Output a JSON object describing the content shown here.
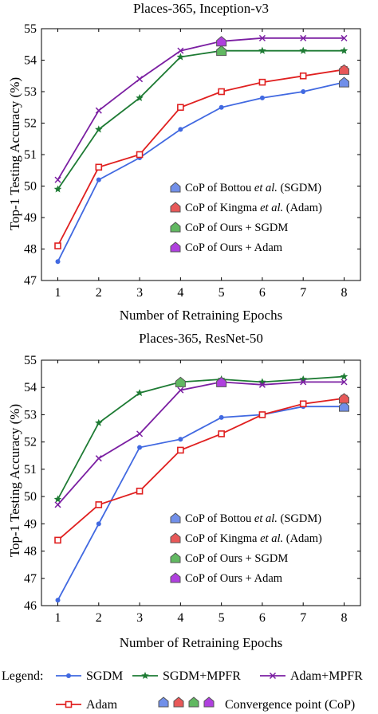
{
  "chart_data": [
    {
      "type": "line",
      "title": "Places-365, Inception-v3",
      "xlabel": "Number of Retraining Epochs",
      "ylabel": "Top-1 Testing Accuracy (%)",
      "x": [
        1,
        2,
        3,
        4,
        5,
        6,
        7,
        8
      ],
      "xlim": [
        0.6,
        8.4
      ],
      "ylim": [
        47,
        55
      ],
      "yticks": [
        47,
        48,
        49,
        50,
        51,
        52,
        53,
        54,
        55
      ],
      "grid": false,
      "legend_position": "lower-right",
      "series": [
        {
          "key": "sgdm",
          "values": [
            47.6,
            50.2,
            50.9,
            51.8,
            52.5,
            52.8,
            53.0,
            53.3
          ]
        },
        {
          "key": "sgdm_mpfr",
          "values": [
            49.9,
            51.8,
            52.8,
            54.1,
            54.3,
            54.3,
            54.3,
            54.3
          ]
        },
        {
          "key": "adam_mpfr",
          "values": [
            50.2,
            52.4,
            53.4,
            54.3,
            54.6,
            54.7,
            54.7,
            54.7
          ]
        },
        {
          "key": "adam",
          "values": [
            48.1,
            50.6,
            51.0,
            52.5,
            53.0,
            53.3,
            53.5,
            53.7
          ]
        }
      ],
      "convergence_points": [
        {
          "series": "sgdm",
          "x": 8,
          "y": 53.3,
          "color": "#4169e1"
        },
        {
          "series": "adam",
          "x": 8,
          "y": 53.7,
          "color": "#e02020"
        },
        {
          "series": "sgdm_mpfr",
          "x": 5,
          "y": 54.3,
          "color": "#2ca02c"
        },
        {
          "series": "adam_mpfr",
          "x": 5,
          "y": 54.6,
          "color": "#9400d3"
        }
      ],
      "inner_legend": [
        {
          "parts": [
            "CoP of Bottou ",
            "et al.",
            " (SGDM)"
          ],
          "color": "#4169e1"
        },
        {
          "parts": [
            "CoP of Kingma ",
            "et al.",
            " (Adam)"
          ],
          "color": "#e02020"
        },
        {
          "parts": [
            "CoP of Ours + SGDM",
            "",
            ""
          ],
          "color": "#2ca02c"
        },
        {
          "parts": [
            "CoP of Ours + Adam",
            "",
            ""
          ],
          "color": "#9400d3"
        }
      ]
    },
    {
      "type": "line",
      "title": "Places-365, ResNet-50",
      "xlabel": "Number of Retraining Epochs",
      "ylabel": "Top-1 Testing Accuracy (%)",
      "x": [
        1,
        2,
        3,
        4,
        5,
        6,
        7,
        8
      ],
      "xlim": [
        0.6,
        8.4
      ],
      "ylim": [
        46,
        55
      ],
      "yticks": [
        46,
        47,
        48,
        49,
        50,
        51,
        52,
        53,
        54,
        55
      ],
      "grid": false,
      "legend_position": "lower-right",
      "series": [
        {
          "key": "sgdm",
          "values": [
            46.2,
            49.0,
            51.8,
            52.1,
            52.9,
            53.0,
            53.3,
            53.3
          ]
        },
        {
          "key": "sgdm_mpfr",
          "values": [
            49.9,
            52.7,
            53.8,
            54.2,
            54.3,
            54.2,
            54.3,
            54.4
          ]
        },
        {
          "key": "adam_mpfr",
          "values": [
            49.7,
            51.4,
            52.3,
            53.9,
            54.2,
            54.1,
            54.2,
            54.2
          ]
        },
        {
          "key": "adam",
          "values": [
            48.4,
            49.7,
            50.2,
            51.7,
            52.3,
            53.0,
            53.4,
            53.6
          ]
        }
      ],
      "convergence_points": [
        {
          "series": "sgdm",
          "x": 8,
          "y": 53.3,
          "color": "#4169e1"
        },
        {
          "series": "adam",
          "x": 8,
          "y": 53.6,
          "color": "#e02020"
        },
        {
          "series": "sgdm_mpfr",
          "x": 4,
          "y": 54.2,
          "color": "#2ca02c"
        },
        {
          "series": "adam_mpfr",
          "x": 5,
          "y": 54.2,
          "color": "#9400d3"
        }
      ],
      "inner_legend": [
        {
          "parts": [
            "CoP of Bottou ",
            "et al.",
            " (SGDM)"
          ],
          "color": "#4169e1"
        },
        {
          "parts": [
            "CoP of Kingma ",
            "et al.",
            " (Adam)"
          ],
          "color": "#e02020"
        },
        {
          "parts": [
            "CoP of Ours + SGDM",
            "",
            ""
          ],
          "color": "#2ca02c"
        },
        {
          "parts": [
            "CoP of Ours + Adam",
            "",
            ""
          ],
          "color": "#9400d3"
        }
      ]
    }
  ],
  "series_styles": {
    "sgdm": {
      "name": "SGDM",
      "color": "#4169e1",
      "marker": "dot"
    },
    "sgdm_mpfr": {
      "name": "SGDM+MPFR",
      "color": "#1e7b34",
      "marker": "star"
    },
    "adam_mpfr": {
      "name": "Adam+MPFR",
      "color": "#7b1fa2",
      "marker": "x"
    },
    "adam": {
      "name": "Adam",
      "color": "#e02020",
      "marker": "square"
    }
  },
  "bottom_legend": {
    "label": "Legend:",
    "cop_label": "Convergence point (CoP)",
    "cop_colors": [
      "#4169e1",
      "#e02020",
      "#2ca02c",
      "#9400d3"
    ]
  }
}
